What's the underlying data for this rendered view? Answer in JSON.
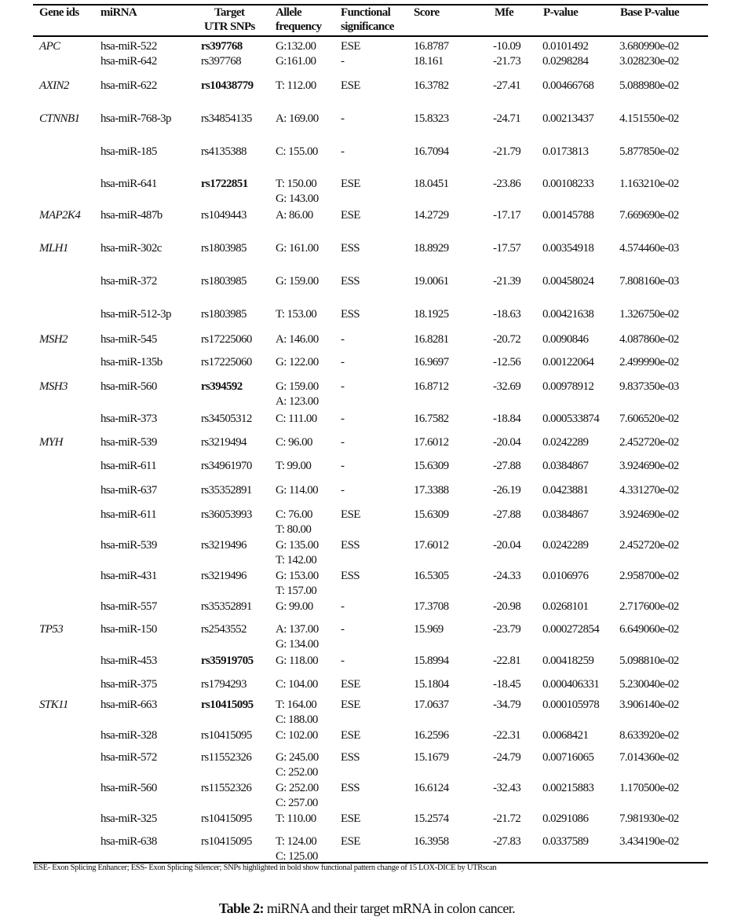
{
  "table": {
    "headers": {
      "gene_ids": "Gene ids",
      "mirna": "miRNA",
      "target_line1": "Target",
      "target_line2": "UTR SNPs",
      "allele_line1": "Allele",
      "allele_line2": "frequency",
      "functional_line1": "Functional",
      "functional_line2": "significance",
      "score": "Score",
      "mfe": "Mfe",
      "pvalue": "P-value",
      "base_pvalue": "Base P-value"
    },
    "rows": [
      {
        "gene": "APC",
        "mirna": "hsa-miR-522",
        "snp": "rs397768",
        "snp_bold": true,
        "allele": [
          "G:132.00"
        ],
        "func": "ESE",
        "score": "16.8787",
        "mfe": "-10.09",
        "p": "0.0101492",
        "base": "3.680990e-02"
      },
      {
        "gene": "",
        "mirna": "hsa-miR-642",
        "snp": "rs397768",
        "snp_bold": false,
        "allele": [
          "G:161.00"
        ],
        "func": "-",
        "score": "18.161",
        "mfe": "-21.73",
        "p": "0.0298284",
        "base": "3.028230e-02"
      },
      {
        "gene": "AXIN2",
        "mirna": "hsa-miR-622",
        "snp": "rs10438779",
        "snp_bold": true,
        "allele": [
          "T: 112.00"
        ],
        "func": "ESE",
        "score": "16.3782",
        "mfe": "-27.41",
        "p": "0.00466768",
        "base": "5.088980e-02"
      },
      {
        "gene": "CTNNB1",
        "mirna": "hsa-miR-768-3p",
        "snp": "rs34854135",
        "snp_bold": false,
        "allele": [
          "A: 169.00"
        ],
        "func": "-",
        "score": "15.8323",
        "mfe": "-24.71",
        "p": "0.00213437",
        "base": "4.151550e-02"
      },
      {
        "gene": "",
        "mirna": "hsa-miR-185",
        "snp": "rs4135388",
        "snp_bold": false,
        "allele": [
          "C: 155.00"
        ],
        "func": "-",
        "score": "16.7094",
        "mfe": "-21.79",
        "p": "0.0173813",
        "base": "5.877850e-02"
      },
      {
        "gene": "",
        "mirna": "hsa-miR-641",
        "snp": "rs1722851",
        "snp_bold": true,
        "allele": [
          "T: 150.00",
          "G: 143.00"
        ],
        "func": "ESE",
        "score": "18.0451",
        "mfe": "-23.86",
        "p": "0.00108233",
        "base": "1.163210e-02"
      },
      {
        "gene": "MAP2K4",
        "mirna": "hsa-miR-487b",
        "snp": "rs1049443",
        "snp_bold": false,
        "allele": [
          "A: 86.00"
        ],
        "func": "ESE",
        "score": "14.2729",
        "mfe": "-17.17",
        "p": "0.00145788",
        "base": "7.669690e-02"
      },
      {
        "gene": "MLH1",
        "mirna": "hsa-miR-302c",
        "snp": "rs1803985",
        "snp_bold": false,
        "allele": [
          "G: 161.00"
        ],
        "func": "ESS",
        "score": "18.8929",
        "mfe": "-17.57",
        "p": "0.00354918",
        "base": "4.574460e-03"
      },
      {
        "gene": "",
        "mirna": "hsa-miR-372",
        "snp": "rs1803985",
        "snp_bold": false,
        "allele": [
          "G: 159.00"
        ],
        "func": "ESS",
        "score": "19.0061",
        "mfe": "-21.39",
        "p": "0.00458024",
        "base": "7.808160e-03"
      },
      {
        "gene": "",
        "mirna": "hsa-miR-512-3p",
        "snp": "rs1803985",
        "snp_bold": false,
        "allele": [
          "T: 153.00"
        ],
        "func": "ESS",
        "score": "18.1925",
        "mfe": "-18.63",
        "p": "0.00421638",
        "base": "1.326750e-02"
      },
      {
        "gene": "MSH2",
        "mirna": "hsa-miR-545",
        "snp": "rs17225060",
        "snp_bold": false,
        "allele": [
          "A: 146.00"
        ],
        "func": "-",
        "score": "16.8281",
        "mfe": "-20.72",
        "p": "0.0090846",
        "base": "4.087860e-02"
      },
      {
        "gene": "",
        "mirna": "hsa-miR-135b",
        "snp": "rs17225060",
        "snp_bold": false,
        "allele": [
          "G: 122.00"
        ],
        "func": "-",
        "score": "16.9697",
        "mfe": "-12.56",
        "p": "0.00122064",
        "base": "2.499990e-02"
      },
      {
        "gene": "MSH3",
        "mirna": "hsa-miR-560",
        "snp": "rs394592",
        "snp_bold": true,
        "allele": [
          "G: 159.00",
          "A: 123.00"
        ],
        "func": "-",
        "score": "16.8712",
        "mfe": "-32.69",
        "p": "0.00978912",
        "base": "9.837350e-03"
      },
      {
        "gene": "",
        "mirna": "hsa-miR-373",
        "snp": "rs34505312",
        "snp_bold": false,
        "allele": [
          "C: 111.00"
        ],
        "func": "-",
        "score": "16.7582",
        "mfe": "-18.84",
        "p": "0.000533874",
        "base": "7.606520e-02"
      },
      {
        "gene": "MYH",
        "mirna": "hsa-miR-539",
        "snp": "rs3219494",
        "snp_bold": false,
        "allele": [
          "C: 96.00"
        ],
        "func": "-",
        "score": "17.6012",
        "mfe": "-20.04",
        "p": "0.0242289",
        "base": "2.452720e-02"
      },
      {
        "gene": "",
        "mirna": "hsa-miR-611",
        "snp": "rs34961970",
        "snp_bold": false,
        "allele": [
          "T: 99.00"
        ],
        "func": "-",
        "score": "15.6309",
        "mfe": "-27.88",
        "p": "0.0384867",
        "base": "3.924690e-02"
      },
      {
        "gene": "",
        "mirna": "hsa-miR-637",
        "snp": "rs35352891",
        "snp_bold": false,
        "allele": [
          "G: 114.00"
        ],
        "func": "-",
        "score": "17.3388",
        "mfe": "-26.19",
        "p": "0.0423881",
        "base": "4.331270e-02"
      },
      {
        "gene": "",
        "mirna": "hsa-miR-611",
        "snp": "rs36053993",
        "snp_bold": false,
        "allele": [
          "C: 76.00",
          "T: 80.00"
        ],
        "func": "ESE",
        "score": "15.6309",
        "mfe": "-27.88",
        "p": "0.0384867",
        "base": "3.924690e-02"
      },
      {
        "gene": "",
        "mirna": "hsa-miR-539",
        "snp": "rs3219496",
        "snp_bold": false,
        "allele": [
          "G: 135.00",
          "T: 142.00"
        ],
        "func": "ESS",
        "score": "17.6012",
        "mfe": "-20.04",
        "p": "0.0242289",
        "base": "2.452720e-02"
      },
      {
        "gene": "",
        "mirna": "hsa-miR-431",
        "snp": "rs3219496",
        "snp_bold": false,
        "allele": [
          "G: 153.00",
          "T: 157.00"
        ],
        "func": "ESS",
        "score": "16.5305",
        "mfe": "-24.33",
        "p": "0.0106976",
        "base": "2.958700e-02"
      },
      {
        "gene": "",
        "mirna": "hsa-miR-557",
        "snp": "rs35352891",
        "snp_bold": false,
        "allele": [
          "G: 99.00"
        ],
        "func": "-",
        "score": "17.3708",
        "mfe": "-20.98",
        "p": "0.0268101",
        "base": "2.717600e-02"
      },
      {
        "gene": "TP53",
        "mirna": "hsa-miR-150",
        "snp": "rs2543552",
        "snp_bold": false,
        "allele": [
          "A: 137.00",
          "G: 134.00"
        ],
        "func": "-",
        "score": "15.969",
        "mfe": "-23.79",
        "p": "0.000272854",
        "base": "6.649060e-02"
      },
      {
        "gene": "",
        "mirna": "hsa-miR-453",
        "snp": "rs35919705",
        "snp_bold": true,
        "allele": [
          "G: 118.00"
        ],
        "func": "-",
        "score": "15.8994",
        "mfe": "-22.81",
        "p": "0.00418259",
        "base": "5.098810e-02"
      },
      {
        "gene": "",
        "mirna": "hsa-miR-375",
        "snp": "rs1794293",
        "snp_bold": false,
        "allele": [
          "C: 104.00"
        ],
        "func": "ESE",
        "score": "15.1804",
        "mfe": "-18.45",
        "p": "0.000406331",
        "base": "5.230040e-02"
      },
      {
        "gene": "STK11",
        "mirna": "hsa-miR-663",
        "snp": "rs10415095",
        "snp_bold": true,
        "allele": [
          "T: 164.00",
          "C: 188.00"
        ],
        "func": "ESE",
        "score": "17.0637",
        "mfe": "-34.79",
        "p": "0.000105978",
        "base": "3.906140e-02"
      },
      {
        "gene": "",
        "mirna": "hsa-miR-328",
        "snp": "rs10415095",
        "snp_bold": false,
        "allele": [
          "C: 102.00"
        ],
        "func": "ESE",
        "score": "16.2596",
        "mfe": "-22.31",
        "p": "0.0068421",
        "base": "8.633920e-02"
      },
      {
        "gene": "",
        "mirna": "hsa-miR-572",
        "snp": "rs11552326",
        "snp_bold": false,
        "allele": [
          "G: 245.00",
          "C: 252.00"
        ],
        "func": "ESS",
        "score": "15.1679",
        "mfe": "-24.79",
        "p": "0.00716065",
        "base": "7.014360e-02"
      },
      {
        "gene": "",
        "mirna": "hsa-miR-560",
        "snp": "rs11552326",
        "snp_bold": false,
        "allele": [
          "G: 252.00",
          "C: 257.00"
        ],
        "func": "ESS",
        "score": "16.6124",
        "mfe": "-32.43",
        "p": "0.00215883",
        "base": "1.170500e-02"
      },
      {
        "gene": "",
        "mirna": "hsa-miR-325",
        "snp": "rs10415095",
        "snp_bold": false,
        "allele": [
          "T: 110.00"
        ],
        "func": "ESE",
        "score": "15.2574",
        "mfe": "-21.72",
        "p": "0.0291086",
        "base": "7.981930e-02"
      },
      {
        "gene": "",
        "mirna": "hsa-miR-638",
        "snp": "rs10415095",
        "snp_bold": false,
        "allele": [
          "T: 124.00",
          "C: 125.00"
        ],
        "func": "ESE",
        "score": "16.3958",
        "mfe": "-27.83",
        "p": "0.0337589",
        "base": "3.434190e-02"
      }
    ]
  },
  "footnote": "ESE- Exon Splicing Enhancer; ESS- Exon Splicing Silencer; SNPs highlighted in bold show functional pattern change of 15 LOX-DICE by UTRscan",
  "caption": {
    "label": "Table 2:",
    "text": " miRNA and their target mRNA in colon cancer."
  }
}
